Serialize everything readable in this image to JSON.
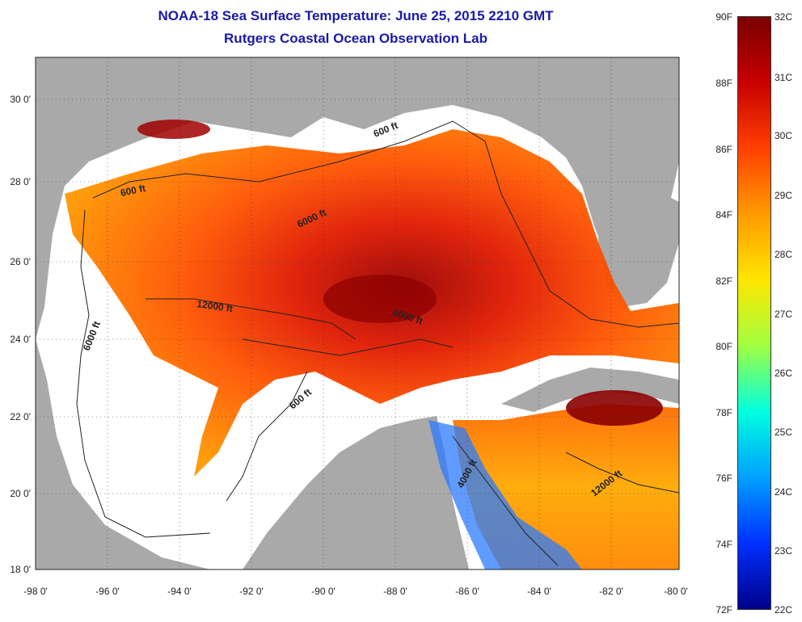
{
  "title_line1": "NOAA-18 Sea Surface Temperature:  June 25, 2015 2210 GMT",
  "title_line2": "Rutgers Coastal Ocean Observation Lab",
  "axes": {
    "x_ticks": [
      "-98 0'",
      "-96 0'",
      "-94 0'",
      "-92 0'",
      "-90 0'",
      "-88 0'",
      "-86 0'",
      "-84 0'",
      "-82 0'",
      "-80 0'"
    ],
    "y_ticks": [
      "30 0'",
      "28 0'",
      "26 0'",
      "24 0'",
      "22 0'",
      "20 0'",
      "18 0'"
    ]
  },
  "contour_labels": [
    {
      "text": "600 ft"
    },
    {
      "text": "600 ft"
    },
    {
      "text": "6000 ft"
    },
    {
      "text": "12000 ft"
    },
    {
      "text": "6000 ft"
    },
    {
      "text": "6000 ft"
    },
    {
      "text": "600 ft"
    },
    {
      "text": "4000 ft"
    },
    {
      "text": "12000 ft"
    }
  ],
  "colorbar": {
    "fahrenheit": [
      "90F",
      "88F",
      "86F",
      "84F",
      "82F",
      "80F",
      "78F",
      "76F",
      "74F",
      "72F"
    ],
    "celsius": [
      "32C",
      "31C",
      "30C",
      "29C",
      "28C",
      "27C",
      "26C",
      "25C",
      "24C",
      "23C",
      "22C"
    ],
    "colors": [
      "#7a0000",
      "#c80000",
      "#ff4000",
      "#ff9a00",
      "#ffe600",
      "#a0ff40",
      "#00ffe0",
      "#00a0ff",
      "#0030ff",
      "#00008a"
    ]
  },
  "colors": {
    "land": "#a9a9a9",
    "no_data": "#ffffff",
    "title": "#1a1aa8"
  }
}
